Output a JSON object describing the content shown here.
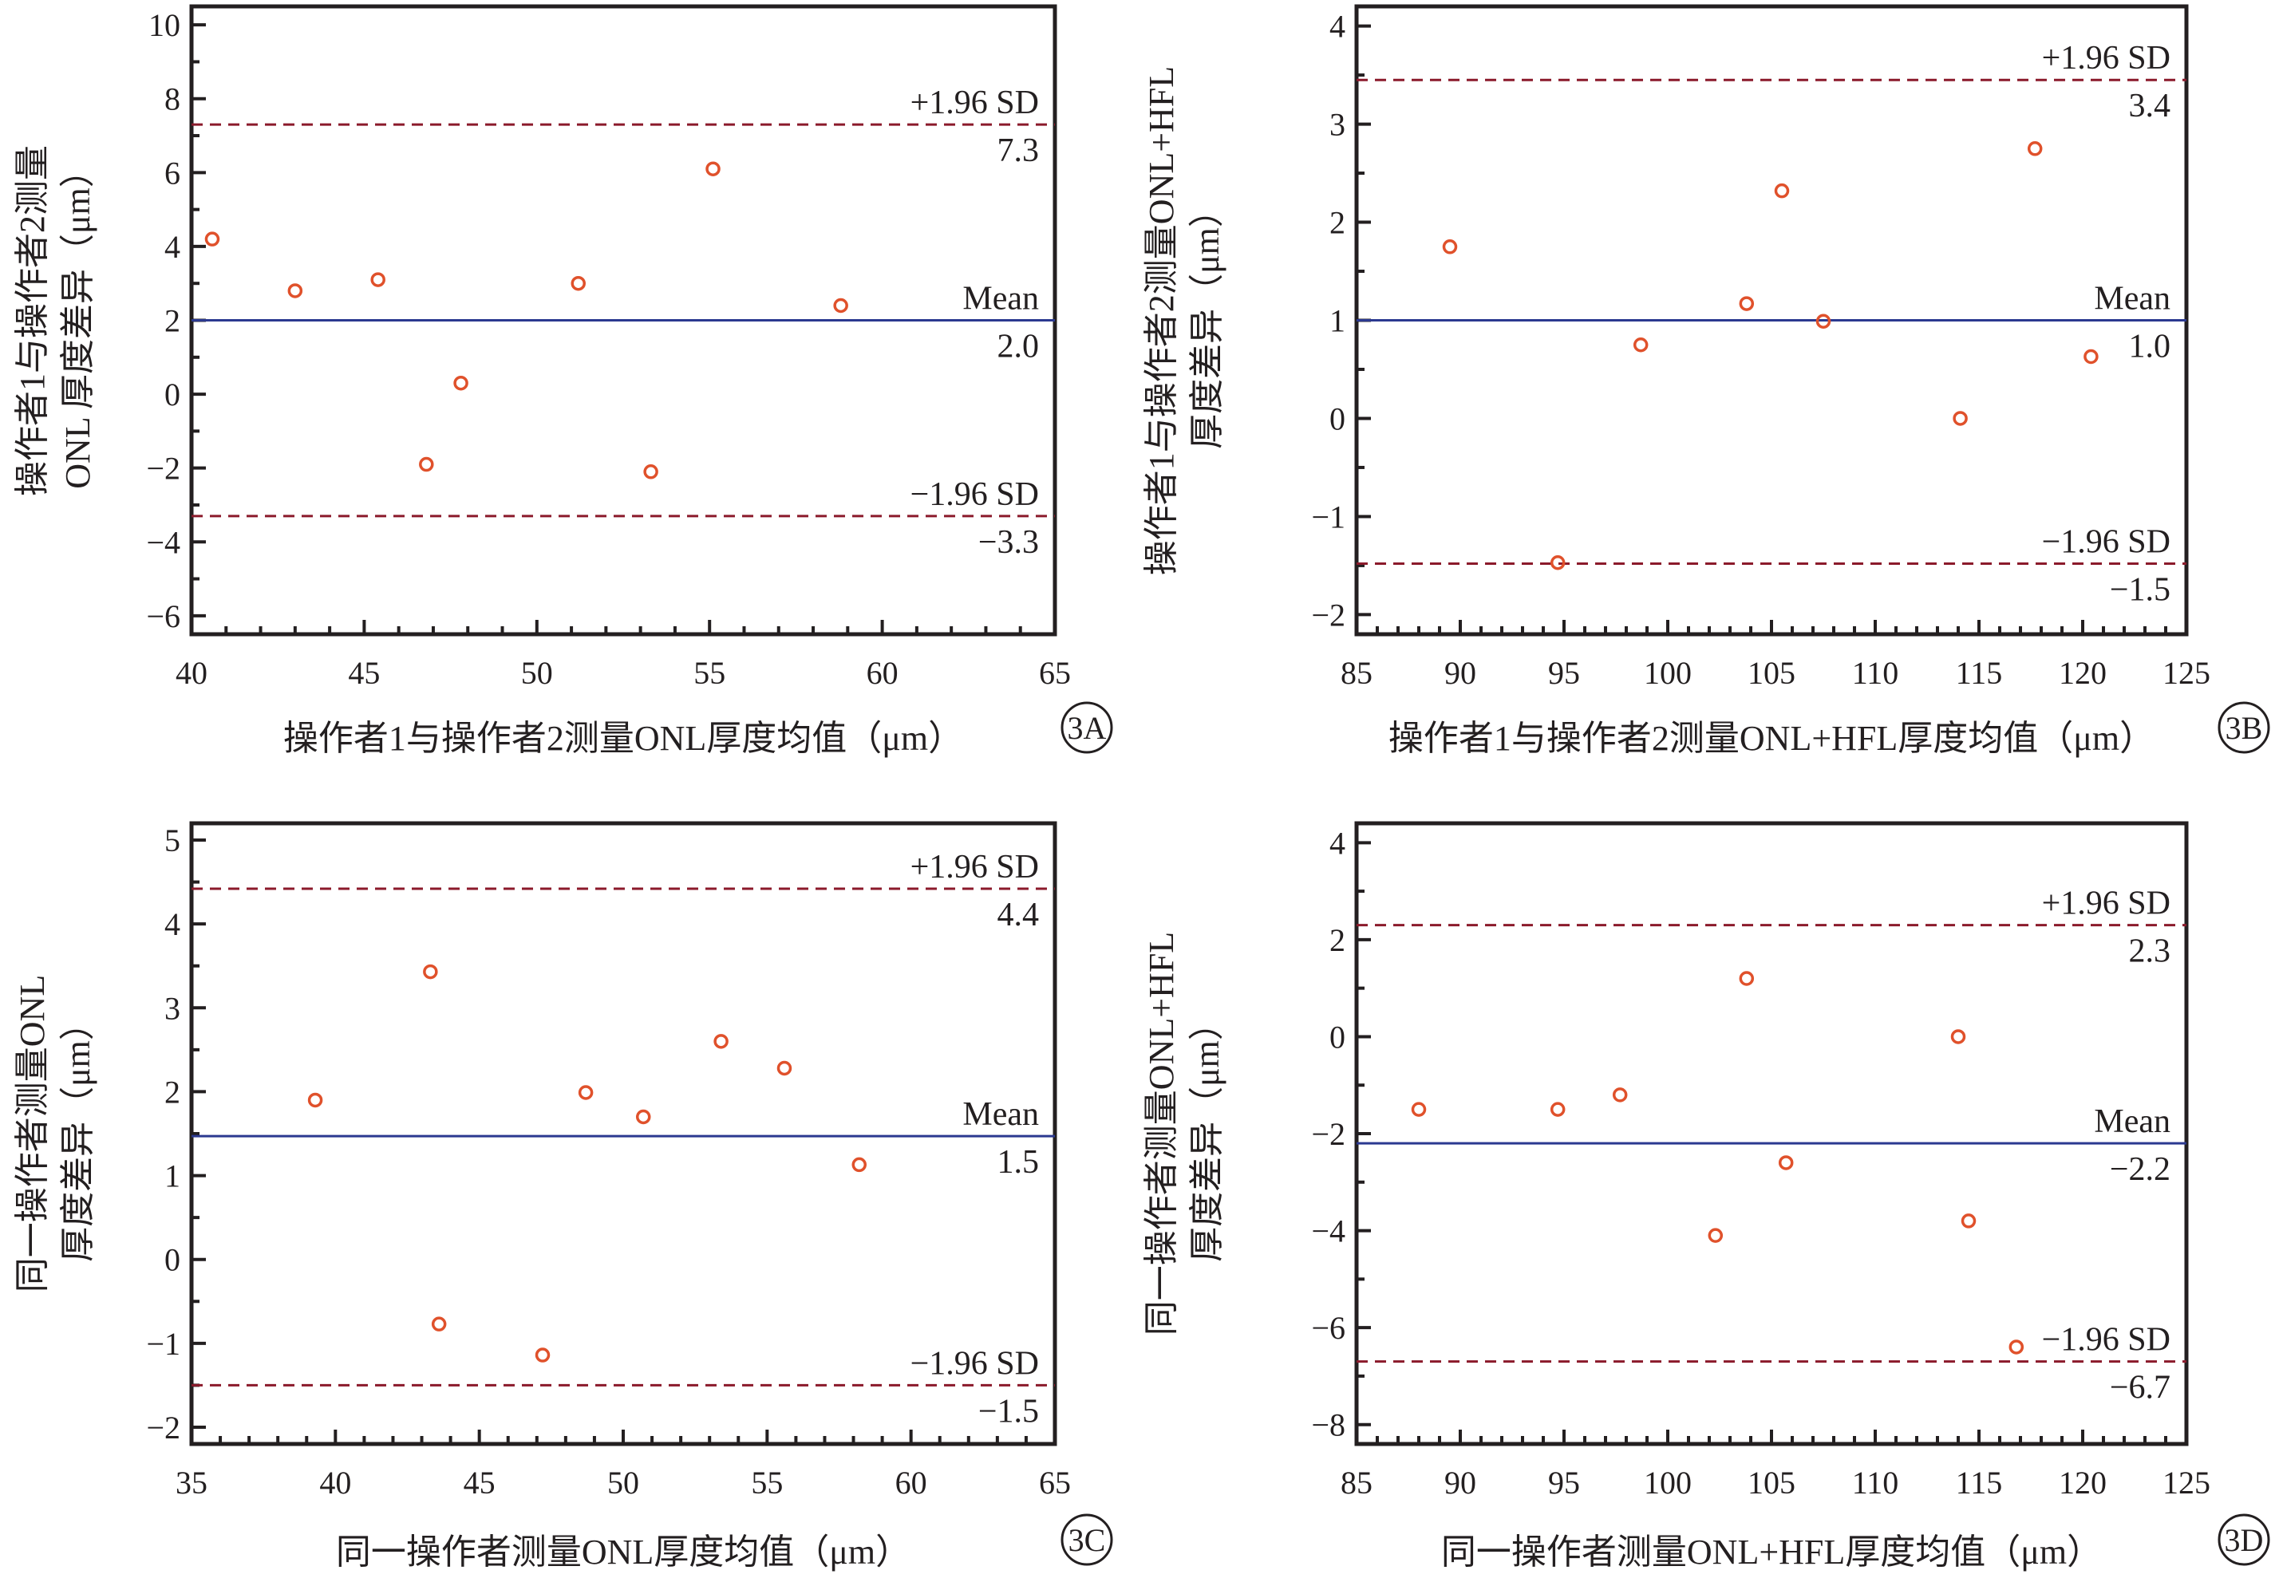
{
  "colors": {
    "axis": "#231f20",
    "point": "#e0512b",
    "mean_line": "#2b3990",
    "limit_line": "#8b1a2b"
  },
  "chart_data": [
    {
      "type": "scatter",
      "panel_tag": "3A",
      "xlabel": "操作者1与操作者2测量ONL厚度均值（μm）",
      "ylabel": [
        "操作者1与操作者2测量",
        "ONL 厚度差异（μm）"
      ],
      "xlim": [
        40,
        65
      ],
      "ylim": [
        -6.5,
        10.5
      ],
      "xticks": [
        40,
        45,
        50,
        55,
        60,
        65
      ],
      "yticks": [
        -6,
        -4,
        -2,
        0,
        2,
        4,
        6,
        8,
        10
      ],
      "x": [
        40.6,
        43.0,
        45.4,
        46.8,
        47.8,
        51.2,
        53.3,
        55.1,
        58.8
      ],
      "y": [
        4.2,
        2.8,
        3.1,
        -1.9,
        0.3,
        3.0,
        -2.1,
        6.1,
        2.4
      ],
      "mean": 2.0,
      "upper": 7.3,
      "lower": -3.3,
      "mean_text": "Mean",
      "mean_value": "2.0",
      "upper_text": "+1.96 SD",
      "upper_value": "7.3",
      "lower_text": "−1.96 SD",
      "lower_value": "−3.3"
    },
    {
      "type": "scatter",
      "panel_tag": "3B",
      "xlabel": "操作者1与操作者2测量ONL+HFL厚度均值（μm）",
      "ylabel": [
        "操作者1与操作者2测量ONL+HFL",
        "厚度差异（μm）"
      ],
      "xlim": [
        85,
        125
      ],
      "ylim": [
        -2.2,
        4.2
      ],
      "xticks": [
        85,
        90,
        95,
        100,
        105,
        110,
        115,
        120,
        125
      ],
      "yticks": [
        -2,
        -1,
        0,
        1,
        2,
        3,
        4
      ],
      "x": [
        89.5,
        94.7,
        98.7,
        103.8,
        105.5,
        107.5,
        114.1,
        117.7,
        120.4
      ],
      "y": [
        1.75,
        -1.47,
        0.75,
        1.17,
        2.32,
        0.99,
        0.0,
        2.75,
        0.63
      ],
      "mean": 1.0,
      "upper": 3.45,
      "lower": -1.48,
      "mean_text": "Mean",
      "mean_value": "1.0",
      "upper_text": "+1.96 SD",
      "upper_value": "3.4",
      "lower_text": "−1.96 SD",
      "lower_value": "−1.5"
    },
    {
      "type": "scatter",
      "panel_tag": "3C",
      "xlabel": "同一操作者测量ONL厚度均值（μm）",
      "ylabel": [
        "同一操作者测量ONL",
        "厚度差异（μm）"
      ],
      "xlim": [
        35,
        65
      ],
      "ylim": [
        -2.2,
        5.2
      ],
      "xticks": [
        35,
        40,
        45,
        50,
        55,
        60,
        65
      ],
      "yticks": [
        -2,
        -1,
        0,
        1,
        2,
        3,
        4,
        5
      ],
      "x": [
        39.3,
        43.3,
        43.6,
        47.2,
        48.7,
        50.7,
        53.4,
        55.6,
        58.2
      ],
      "y": [
        1.9,
        3.43,
        -0.77,
        -1.14,
        1.99,
        1.7,
        2.6,
        2.28,
        1.13
      ],
      "mean": 1.47,
      "upper": 4.42,
      "lower": -1.5,
      "mean_text": "Mean",
      "mean_value": "1.5",
      "upper_text": "+1.96 SD",
      "upper_value": "4.4",
      "lower_text": "−1.96 SD",
      "lower_value": "−1.5"
    },
    {
      "type": "scatter",
      "panel_tag": "3D",
      "xlabel": "同一操作者测量ONL+HFL厚度均值（μm）",
      "ylabel": [
        "同一操作者测量ONL+HFL",
        "厚度差异（μm）"
      ],
      "xlim": [
        85,
        125
      ],
      "ylim": [
        -8.4,
        4.4
      ],
      "xticks": [
        85,
        90,
        95,
        100,
        105,
        110,
        115,
        120,
        125
      ],
      "yticks": [
        -8,
        -6,
        -4,
        -2,
        0,
        2,
        4
      ],
      "x": [
        88.0,
        94.7,
        97.7,
        102.3,
        103.8,
        105.7,
        114.0,
        114.5,
        116.8
      ],
      "y": [
        -1.5,
        -1.5,
        -1.2,
        -4.1,
        1.2,
        -2.6,
        0.0,
        -3.8,
        -6.4
      ],
      "mean": -2.2,
      "upper": 2.3,
      "lower": -6.7,
      "mean_text": "Mean",
      "mean_value": "−2.2",
      "upper_text": "+1.96 SD",
      "upper_value": "2.3",
      "lower_text": "−1.96 SD",
      "lower_value": "−6.7"
    }
  ]
}
